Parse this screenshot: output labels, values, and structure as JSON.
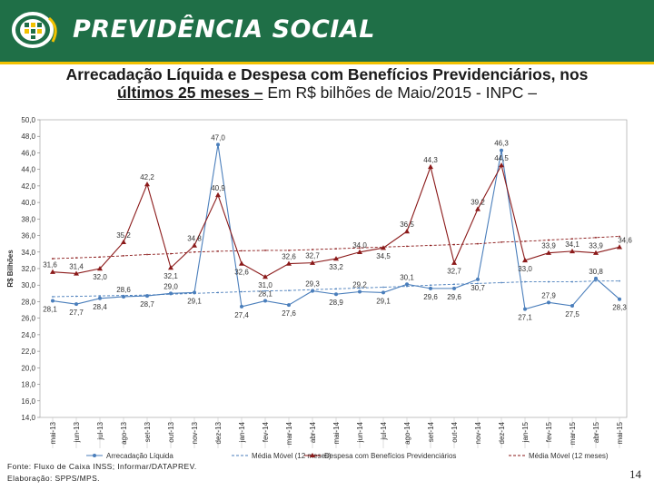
{
  "header": {
    "brand": "PREVIDÊNCIA SOCIAL"
  },
  "title": {
    "bold_part1": "Arrecadação Líquida e Despesa com Benefícios Previdenciários, nos",
    "bold_part2": "últimos 25 meses –",
    "normal_part": " Em R$ bilhões de Maio/2015 - INPC –"
  },
  "colors": {
    "banner": "#1f6f47",
    "accent": "#f2c100",
    "series_arrecadacao": "#4a7ebb",
    "series_despesa": "#8b1a1a"
  },
  "chart_data": {
    "type": "line",
    "ylabel": "R$ Bilhões",
    "ylim": [
      14,
      50
    ],
    "yticks": [
      "14,0",
      "16,0",
      "18,0",
      "20,0",
      "22,0",
      "24,0",
      "26,0",
      "28,0",
      "30,0",
      "32,0",
      "34,0",
      "36,0",
      "38,0",
      "40,0",
      "42,0",
      "44,0",
      "46,0",
      "48,0",
      "50,0"
    ],
    "categories": [
      "mai-13",
      "jun-13",
      "jul-13",
      "ago-13",
      "set-13",
      "out-13",
      "nov-13",
      "dez-13",
      "jan-14",
      "fev-14",
      "mar-14",
      "abr-14",
      "mai-14",
      "jun-14",
      "jul-14",
      "ago-14",
      "set-14",
      "out-14",
      "nov-14",
      "dez-14",
      "jan-15",
      "fev-15",
      "mar-15",
      "abr-15",
      "mai-15"
    ],
    "series": [
      {
        "name": "Arrecadação Líquida",
        "style": "solid",
        "marker": "circle",
        "values": [
          28.1,
          27.7,
          28.4,
          28.6,
          28.7,
          29.0,
          29.1,
          47.0,
          27.4,
          28.1,
          27.6,
          29.3,
          28.9,
          29.2,
          29.1,
          30.1,
          29.6,
          29.6,
          30.7,
          46.3,
          27.1,
          27.9,
          27.5,
          30.8,
          28.3
        ],
        "labels": [
          "28,1",
          "27,7",
          "28,4",
          "28,6",
          "28,7",
          "29,0",
          "29,1",
          "47,0",
          "27,4",
          "28,1",
          "27,6",
          "29,3",
          "28,9",
          "29,2",
          "29,1",
          "30,1",
          "29,6",
          "29,6",
          "30,7",
          "46,3",
          "27,1",
          "27,9",
          "27,5",
          "30,8",
          "28,3"
        ]
      },
      {
        "name": "Média Móvel (12 meses)",
        "style": "dashed",
        "marker": "none",
        "values": [
          28.6,
          28.65,
          28.7,
          28.75,
          28.8,
          28.9,
          29.0,
          29.1,
          29.2,
          29.3,
          29.35,
          29.45,
          29.55,
          29.65,
          29.75,
          29.85,
          30.0,
          30.1,
          30.2,
          30.3,
          30.4,
          30.4,
          30.4,
          30.5,
          30.5
        ]
      },
      {
        "name": "Despesa com Benefícios Previdenciários",
        "style": "solid",
        "marker": "triangle",
        "values": [
          31.6,
          31.4,
          32.0,
          35.2,
          42.2,
          32.1,
          34.8,
          40.9,
          32.6,
          31.0,
          32.6,
          32.7,
          33.2,
          34.0,
          34.5,
          36.5,
          44.3,
          32.7,
          39.2,
          44.5,
          33.0,
          33.9,
          34.1,
          33.9,
          34.6
        ],
        "labels": [
          "31,6",
          "31,4",
          "32,0",
          "35,2",
          "42,2",
          "32,1",
          "34,8",
          "40,9",
          "32,6",
          "31,0",
          "32,6",
          "32,7",
          "33,2",
          "34,0",
          "34,5",
          "36,5",
          "44,3",
          "32,7",
          "39,2",
          "44,5",
          "33,0",
          "33,9",
          "34,1",
          "33,9",
          "34,6"
        ]
      },
      {
        "name": "Média Móvel (12 meses)",
        "style": "dashed",
        "marker": "none",
        "values": [
          33.2,
          33.3,
          33.4,
          33.55,
          33.7,
          33.8,
          34.0,
          34.1,
          34.15,
          34.2,
          34.2,
          34.3,
          34.4,
          34.5,
          34.6,
          34.7,
          34.8,
          34.9,
          35.0,
          35.2,
          35.3,
          35.45,
          35.6,
          35.75,
          35.9
        ]
      }
    ]
  },
  "footer": {
    "source_line1": "Fonte: Fluxo de Caixa INSS; Informar/DATAPREV.",
    "source_line2": "Elaboração: SPPS/MPS.",
    "page_number": "14"
  }
}
